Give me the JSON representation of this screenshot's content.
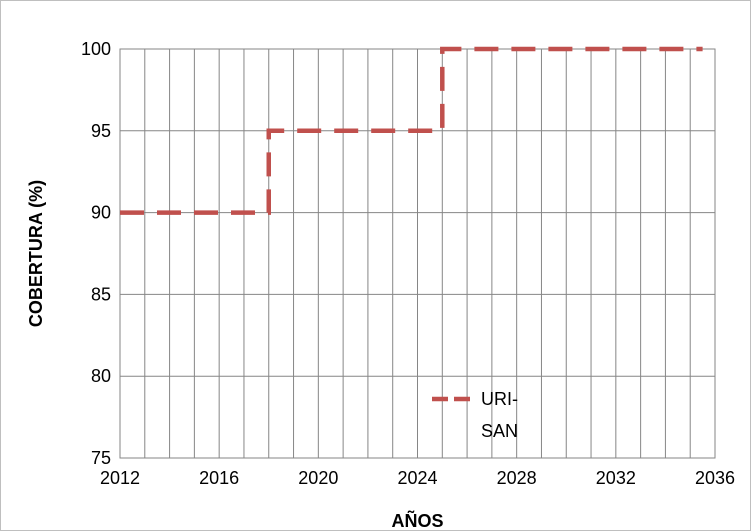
{
  "chart_data": {
    "type": "line",
    "title": "",
    "xlabel": "AÑOS",
    "ylabel": "COBERTURA (%)",
    "xlim": [
      2012,
      2036
    ],
    "ylim": [
      75,
      100
    ],
    "xticks": [
      2012,
      2016,
      2020,
      2024,
      2028,
      2032,
      2036
    ],
    "yticks": [
      75,
      80,
      85,
      90,
      95,
      100
    ],
    "x_minor_step": 1,
    "grid": true,
    "legend_position": "bottom-right",
    "series": [
      {
        "name": "URI-SAN",
        "legend_lines": [
          "URI-",
          "SAN"
        ],
        "color": "#c0504d",
        "line_style": "dashed",
        "x": [
          2012,
          2013,
          2014,
          2015,
          2016,
          2017,
          2018,
          2019,
          2020,
          2021,
          2022,
          2023,
          2024,
          2025,
          2026,
          2027,
          2028,
          2029,
          2030,
          2031,
          2032,
          2033,
          2034,
          2035
        ],
        "y": [
          90,
          90,
          90,
          90,
          90,
          90,
          95,
          95,
          95,
          95,
          95,
          95,
          95,
          100,
          100,
          100,
          100,
          100,
          100,
          100,
          100,
          100,
          100,
          100
        ]
      }
    ]
  }
}
